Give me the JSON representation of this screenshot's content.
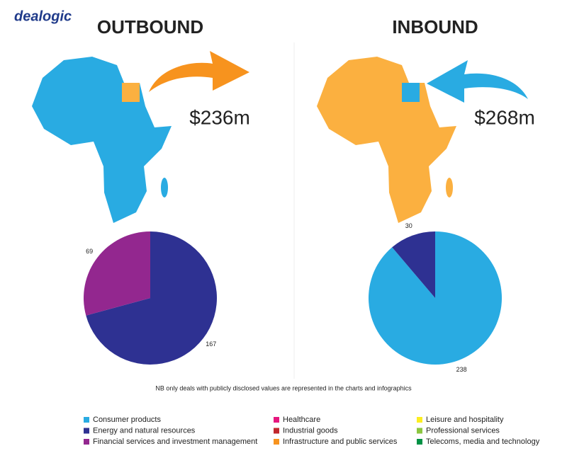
{
  "logo": "dealogic",
  "chart_data": [
    {
      "type": "pie",
      "title": "OUTBOUND",
      "subtitle": "$236m",
      "values": [
        167,
        69
      ],
      "colors": [
        "#2e3192",
        "#93278f"
      ]
    },
    {
      "type": "pie",
      "title": "INBOUND",
      "subtitle": "$268m",
      "values": [
        238,
        30
      ],
      "colors": [
        "#29abe2",
        "#2e3192"
      ]
    }
  ],
  "note": "NB only deals with publicly disclosed values are represented in the charts and infographics",
  "legend": {
    "items": [
      {
        "name": "Consumer products",
        "color": "#29abe2"
      },
      {
        "name": "Energy and natural resources",
        "color": "#2e3192"
      },
      {
        "name": "Financial services and investment management",
        "color": "#93278f"
      },
      {
        "name": "Healthcare",
        "color": "#e6177e"
      },
      {
        "name": "Industrial goods",
        "color": "#c1272d"
      },
      {
        "name": "Infrastructure and public services",
        "color": "#f7931e"
      },
      {
        "name": "Leisure and hospitality",
        "color": "#fcee21"
      },
      {
        "name": "Professional services",
        "color": "#8cc63f"
      },
      {
        "name": "Telecoms, media and technology",
        "color": "#009245"
      }
    ]
  }
}
